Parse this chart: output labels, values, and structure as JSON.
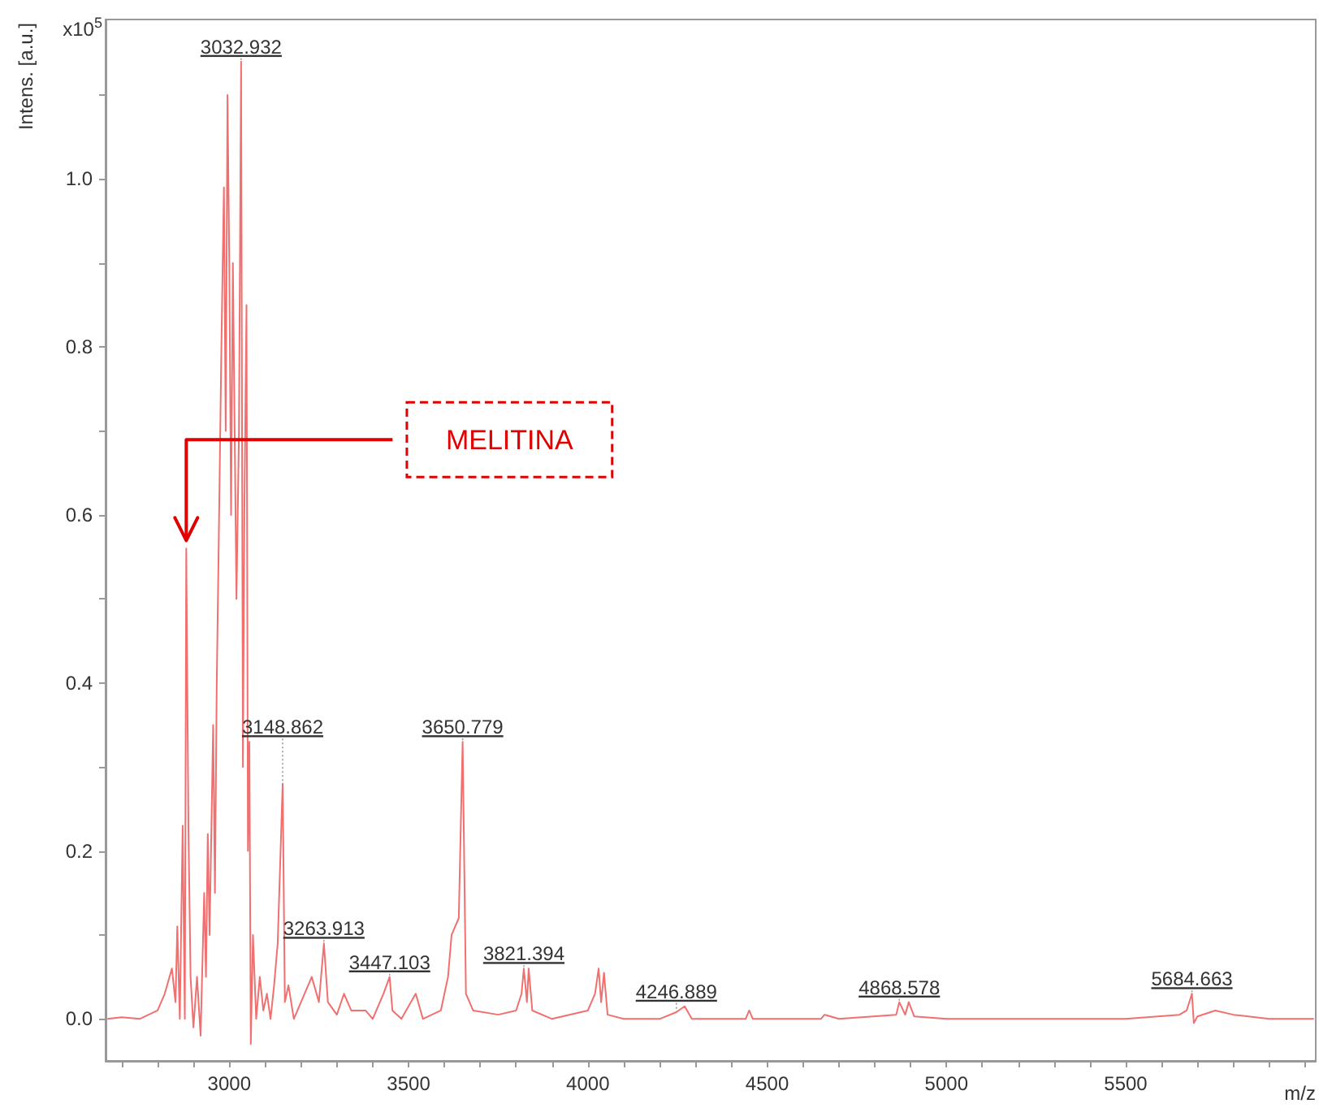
{
  "chart_data": {
    "type": "line",
    "xlabel": "m/z",
    "ylabel": "Intens. [a.u.]",
    "x": [
      2660,
      2700,
      2750,
      2800,
      2820,
      2840,
      2850,
      2855,
      2862,
      2870,
      2876,
      2880,
      2886,
      2892,
      2900,
      2910,
      2920,
      2930,
      2935,
      2940,
      2945,
      2955,
      2960,
      2965,
      2970,
      2978,
      2985,
      2990,
      2995,
      3000,
      3005,
      3010,
      3020,
      3027,
      3032.932,
      3038,
      3042,
      3048,
      3052,
      3056,
      3060,
      3066,
      3075,
      3085,
      3095,
      3105,
      3115,
      3125,
      3135,
      3148.862,
      3155,
      3165,
      3180,
      3200,
      3230,
      3250,
      3263.913,
      3275,
      3300,
      3320,
      3340,
      3380,
      3400,
      3430,
      3447.103,
      3455,
      3480,
      3520,
      3540,
      3590,
      3610,
      3620,
      3640,
      3650.779,
      3660,
      3680,
      3750,
      3800,
      3815,
      3821.394,
      3830,
      3835,
      3845,
      3900,
      4000,
      4020,
      4030,
      4037,
      4045,
      4055,
      4100,
      4200,
      4246.889,
      4270,
      4290,
      4440,
      4450,
      4460,
      4650,
      4660,
      4700,
      4860,
      4868.578,
      4885,
      4895,
      4910,
      5000,
      5500,
      5650,
      5670,
      5684.663,
      5690,
      5700,
      5750,
      5800,
      5900,
      6025
    ],
    "series": [
      {
        "color": "#f07070",
        "values": [
          0,
          0.002,
          0,
          0.01,
          0.03,
          0.06,
          0.02,
          0.11,
          0,
          0.23,
          0,
          0.56,
          0.23,
          0.05,
          -0.01,
          0.05,
          -0.02,
          0.15,
          0.05,
          0.22,
          0.1,
          0.35,
          0.15,
          0.4,
          0.55,
          0.8,
          0.99,
          0.7,
          1.1,
          0.9,
          0.6,
          0.9,
          0.5,
          0.7,
          1.14,
          0.3,
          0.6,
          0.85,
          0.2,
          0.33,
          -0.03,
          0.1,
          0,
          0.05,
          0.01,
          0.03,
          0,
          0.04,
          0.09,
          0.28,
          0.02,
          0.04,
          0,
          0.02,
          0.05,
          0.02,
          0.09,
          0.02,
          0.005,
          0.03,
          0.01,
          0.01,
          0,
          0.03,
          0.05,
          0.01,
          0,
          0.03,
          0,
          0.01,
          0.05,
          0.1,
          0.12,
          0.33,
          0.03,
          0.01,
          0.005,
          0.01,
          0.03,
          0.06,
          0.02,
          0.06,
          0.01,
          0,
          0.01,
          0.03,
          0.06,
          0.02,
          0.055,
          0.005,
          0,
          0,
          0.008,
          0.015,
          0,
          0,
          0.01,
          0,
          0,
          0.005,
          0,
          0.005,
          0.02,
          0.005,
          0.02,
          0.003,
          0,
          0,
          0.005,
          0.01,
          0.03,
          -0.005,
          0.003,
          0.01,
          0.005,
          0,
          0
        ]
      }
    ],
    "xlim": [
      2655,
      6030
    ],
    "xticks": [
      {
        "value": 2700,
        "label": null
      },
      {
        "value": 2800,
        "label": null
      },
      {
        "value": 2900,
        "label": null
      },
      3000,
      {
        "value": 3100,
        "label": null
      },
      {
        "value": 3200,
        "label": null
      },
      {
        "value": 3300,
        "label": null
      },
      {
        "value": 3400,
        "label": null
      },
      3500,
      {
        "value": 3600,
        "label": null
      },
      {
        "value": 3700,
        "label": null
      },
      {
        "value": 3800,
        "label": null
      },
      {
        "value": 3900,
        "label": null
      },
      4000,
      {
        "value": 4100,
        "label": null
      },
      {
        "value": 4200,
        "label": null
      },
      {
        "value": 4300,
        "label": null
      },
      {
        "value": 4400,
        "label": null
      },
      4500,
      {
        "value": 4600,
        "label": null
      },
      {
        "value": 4700,
        "label": null
      },
      {
        "value": 4800,
        "label": null
      },
      {
        "value": 4900,
        "label": null
      },
      5000,
      {
        "value": 5100,
        "label": null
      },
      {
        "value": 5200,
        "label": null
      },
      {
        "value": 5300,
        "label": null
      },
      {
        "value": 5400,
        "label": null
      },
      5500,
      {
        "value": 5600,
        "label": null
      },
      {
        "value": 5700,
        "label": null
      },
      {
        "value": 5800,
        "label": null
      },
      {
        "value": 5900,
        "label": null
      },
      {
        "value": 6000,
        "label": null
      }
    ],
    "ylim": [
      -0.05,
      1.19
    ],
    "yticks": [
      {
        "value": 0,
        "label": "0.0"
      },
      {
        "value": 0.1,
        "label": null
      },
      0.2,
      {
        "value": 0.3,
        "label": null
      },
      0.4,
      {
        "value": 0.5,
        "label": null
      },
      0.6,
      {
        "value": 0.7,
        "label": null
      },
      0.8,
      {
        "value": 0.9,
        "label": null
      },
      {
        "value": 1,
        "label": "1.0"
      },
      {
        "value": 1.1,
        "label": null
      }
    ],
    "grid": false,
    "marker": "none",
    "line_style": "solid",
    "annotations": [
      "x10$^{5}$",
      {
        "text": "3032.932",
        "x": 3032.932,
        "y": 1.14
      },
      {
        "text": "3148.862",
        "x": 3148.862,
        "y": 0.28
      },
      {
        "text": "3263.913",
        "x": 3263.913,
        "y": 0.09
      },
      {
        "text": "3447.103",
        "x": 3447.103,
        "y": 0.05
      },
      {
        "text": "3650.779",
        "x": 3650.779,
        "y": 0.33
      },
      {
        "text": "3821.394",
        "x": 3821.394,
        "y": 0.06
      },
      {
        "text": "4246.889",
        "x": 4246.889,
        "y": 0.008
      },
      {
        "text": "4868.578",
        "x": 4868.578,
        "y": 0.02
      },
      {
        "text": "5684.663",
        "x": 5684.663,
        "y": 0.03
      },
      "MELITINA"
    ]
  }
}
